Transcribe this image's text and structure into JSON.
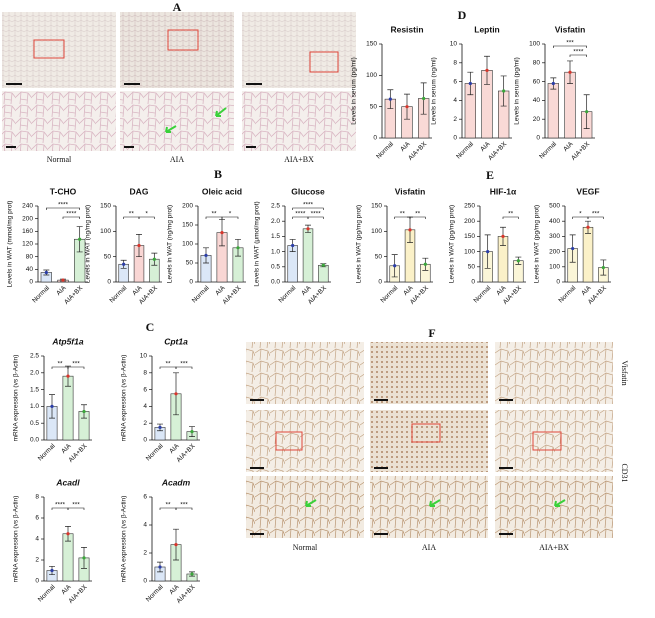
{
  "figure": {
    "panel_labels": [
      "A",
      "B",
      "C",
      "D",
      "E",
      "F"
    ],
    "image_panel_a": {
      "captions": [
        "Normal",
        "AIA",
        "AIA+BX"
      ]
    },
    "image_panel_f": {
      "captions": [
        "Normal",
        "AIA",
        "AIA+BX"
      ],
      "row_labels": [
        "Visfatin",
        "CD31"
      ]
    }
  },
  "chart_data": [
    {
      "type": "bar",
      "title": "Resistin",
      "ylabel": "Levels in serum (pg/ml)",
      "categories": [
        "Normal",
        "AIA",
        "AIA+BX"
      ],
      "values": [
        62,
        50,
        63
      ],
      "errors": [
        15,
        20,
        25
      ],
      "colors": [
        "#f9d9d6",
        "#f9d9d6",
        "#f9d9d6"
      ],
      "ylim": [
        0,
        150
      ],
      "yticks": [
        0,
        50,
        100,
        150
      ]
    },
    {
      "type": "bar",
      "title": "Leptin",
      "ylabel": "Levels in serum (ng/ml)",
      "categories": [
        "Normal",
        "AIA",
        "AIA+BX"
      ],
      "values": [
        5.8,
        7.2,
        5.0
      ],
      "errors": [
        1.2,
        1.5,
        1.6
      ],
      "colors": [
        "#f9d9d6",
        "#f9d9d6",
        "#f9d9d6"
      ],
      "ylim": [
        0,
        10
      ],
      "yticks": [
        0,
        2,
        4,
        6,
        8,
        10
      ]
    },
    {
      "type": "bar",
      "title": "Visfatin",
      "ylabel": "Levels in serum (pg/ml)",
      "categories": [
        "Normal",
        "AIA",
        "AIA+BX"
      ],
      "values": [
        58,
        70,
        28
      ],
      "errors": [
        6,
        12,
        18
      ],
      "colors": [
        "#f9d9d6",
        "#f9d9d6",
        "#f9d9d6"
      ],
      "ylim": [
        0,
        100
      ],
      "yticks": [
        0,
        20,
        40,
        60,
        80,
        100
      ],
      "sig_normal_bx": "***",
      "sig_aia_bx": "****"
    },
    {
      "type": "bar",
      "title": "T-CHO",
      "ylabel": "Levels in WAT (mmol/mg prot)",
      "categories": [
        "Normal",
        "AIA",
        "AIA+BX"
      ],
      "values": [
        30,
        6,
        135
      ],
      "errors": [
        8,
        3,
        40
      ],
      "colors": [
        "#dbe7f7",
        "#f9d6d4",
        "#d6f0d6"
      ],
      "ylim": [
        0,
        240
      ],
      "yticks": [
        0,
        40,
        80,
        120,
        160,
        200,
        240
      ],
      "sig_normal_bx": "****",
      "sig_aia_bx": "****"
    },
    {
      "type": "bar",
      "title": "DAG",
      "ylabel": "Levels in WAT (ng/mg prot)",
      "categories": [
        "Normal",
        "AIA",
        "AIA+BX"
      ],
      "values": [
        35,
        72,
        45
      ],
      "errors": [
        8,
        22,
        12
      ],
      "colors": [
        "#dbe7f7",
        "#f9d6d4",
        "#d6f0d6"
      ],
      "ylim": [
        0,
        150
      ],
      "yticks": [
        0,
        50,
        100,
        150
      ],
      "sig_normal_aia": "**",
      "sig_aia_bx": "*"
    },
    {
      "type": "bar",
      "title": "Oleic acid",
      "ylabel": "Levels in WAT (ng/mg prot)",
      "categories": [
        "Normal",
        "AIA",
        "AIA+BX"
      ],
      "values": [
        70,
        130,
        90
      ],
      "errors": [
        20,
        35,
        22
      ],
      "colors": [
        "#dbe7f7",
        "#f9d6d4",
        "#d6f0d6"
      ],
      "ylim": [
        0,
        200
      ],
      "yticks": [
        0,
        50,
        100,
        150,
        200
      ],
      "sig_normal_aia": "**",
      "sig_aia_bx": "*"
    },
    {
      "type": "bar",
      "title": "Glucose",
      "ylabel": "Levels in WAT (μmol/mg prot)",
      "categories": [
        "Normal",
        "AIA",
        "AIA+BX"
      ],
      "values": [
        1.2,
        1.75,
        0.55
      ],
      "errors": [
        0.2,
        0.12,
        0.05
      ],
      "colors": [
        "#dbe7f7",
        "#d6f0d6",
        "#d6f0d6"
      ],
      "ylim": [
        0,
        2.5
      ],
      "yticks": [
        {
          "value": 0,
          "label": "0.0"
        },
        {
          "value": 0.5,
          "label": "0.5"
        },
        {
          "value": 1,
          "label": "1.0"
        },
        {
          "value": 1.5,
          "label": "1.5"
        },
        {
          "value": 2,
          "label": "2.0"
        },
        {
          "value": 2.5,
          "label": "2.5"
        }
      ],
      "sig_normal_bx": "****",
      "sig_normal_aia": "****",
      "sig_aia_bx": "****"
    },
    {
      "type": "bar",
      "title": "Visfatin",
      "ylabel": "Levels in WAT (pg/mg prot)",
      "categories": [
        "Normal",
        "AIA",
        "AIA+BX"
      ],
      "values": [
        32,
        103,
        35
      ],
      "errors": [
        22,
        25,
        12
      ],
      "colors": [
        "#fbf6d8",
        "#fbf1c8",
        "#fbf6d8"
      ],
      "ylim": [
        0,
        150
      ],
      "yticks": [
        0,
        50,
        100,
        150
      ],
      "sig_normal_aia": "**",
      "sig_aia_bx": "**"
    },
    {
      "type": "bar",
      "title": "HIF-1α",
      "ylabel": "Levels in WAT (pg/mg prot)",
      "categories": [
        "Normal",
        "AIA",
        "AIA+BX"
      ],
      "values": [
        100,
        150,
        70
      ],
      "errors": [
        55,
        30,
        12
      ],
      "colors": [
        "#fbf6d8",
        "#fbf1c8",
        "#fbf6d8"
      ],
      "ylim": [
        0,
        250
      ],
      "yticks": [
        0,
        50,
        100,
        150,
        200,
        250
      ],
      "sig_aia_bx": "**"
    },
    {
      "type": "bar",
      "title": "VEGF",
      "ylabel": "Levels in WAT (pg/mg prot)",
      "categories": [
        "Normal",
        "AIA",
        "AIA+BX"
      ],
      "values": [
        220,
        360,
        95
      ],
      "errors": [
        90,
        40,
        50
      ],
      "colors": [
        "#fbf6d8",
        "#fbf1c8",
        "#fbf6d8"
      ],
      "ylim": [
        0,
        500
      ],
      "yticks": [
        0,
        100,
        200,
        300,
        400,
        500
      ],
      "sig_normal_aia": "*",
      "sig_aia_bx": "***"
    },
    {
      "type": "bar",
      "title": "Atp5f1a",
      "title_italic": true,
      "ylabel": "mRNA expression (vs β-Actin)",
      "categories": [
        "Normal",
        "AIA",
        "AIA+BX"
      ],
      "values": [
        1.0,
        1.9,
        0.85
      ],
      "errors": [
        0.35,
        0.3,
        0.2
      ],
      "colors": [
        "#dbe7f7",
        "#d6f0d6",
        "#d6f0d6"
      ],
      "ylim": [
        0,
        2.5
      ],
      "yticks": [
        {
          "value": 0,
          "label": "0.0"
        },
        {
          "value": 0.5,
          "label": "0.5"
        },
        {
          "value": 1,
          "label": "1.0"
        },
        {
          "value": 1.5,
          "label": "1.5"
        },
        {
          "value": 2,
          "label": "2.0"
        },
        {
          "value": 2.5,
          "label": "2.5"
        }
      ],
      "sig_normal_aia": "**",
      "sig_aia_bx": "***"
    },
    {
      "type": "bar",
      "title": "Cpt1a",
      "title_italic": true,
      "ylabel": "mRNA expression (vs β-Actin)",
      "categories": [
        "Normal",
        "AIA",
        "AIA+BX"
      ],
      "values": [
        1.5,
        5.5,
        1.0
      ],
      "errors": [
        0.4,
        2.5,
        0.6
      ],
      "colors": [
        "#dbe7f7",
        "#d6f0d6",
        "#d6f0d6"
      ],
      "ylim": [
        0,
        10
      ],
      "yticks": [
        0,
        2,
        4,
        6,
        8,
        10
      ],
      "sig_normal_aia": "**",
      "sig_aia_bx": "***"
    },
    {
      "type": "bar",
      "title": "Acadl",
      "title_italic": true,
      "ylabel": "mRNA expression (vs β-Actin)",
      "categories": [
        "Normal",
        "AIA",
        "AIA+BX"
      ],
      "values": [
        1.0,
        4.5,
        2.2
      ],
      "errors": [
        0.4,
        0.7,
        1.0
      ],
      "colors": [
        "#dbe7f7",
        "#d6f0d6",
        "#d6f0d6"
      ],
      "ylim": [
        0,
        8
      ],
      "yticks": [
        0,
        2,
        4,
        6,
        8
      ],
      "sig_normal_aia": "****",
      "sig_aia_bx": "***"
    },
    {
      "type": "bar",
      "title": "Acadm",
      "title_italic": true,
      "ylabel": "mRNA expression (vs β-Actin)",
      "categories": [
        "Normal",
        "AIA",
        "AIA+BX"
      ],
      "values": [
        1.0,
        2.6,
        0.5
      ],
      "errors": [
        0.35,
        1.1,
        0.15
      ],
      "colors": [
        "#dbe7f7",
        "#d6f0d6",
        "#d6f0d6"
      ],
      "ylim": [
        0,
        6
      ],
      "yticks": [
        0,
        2,
        4,
        6
      ],
      "sig_normal_aia": "**",
      "sig_aia_bx": "***"
    }
  ]
}
